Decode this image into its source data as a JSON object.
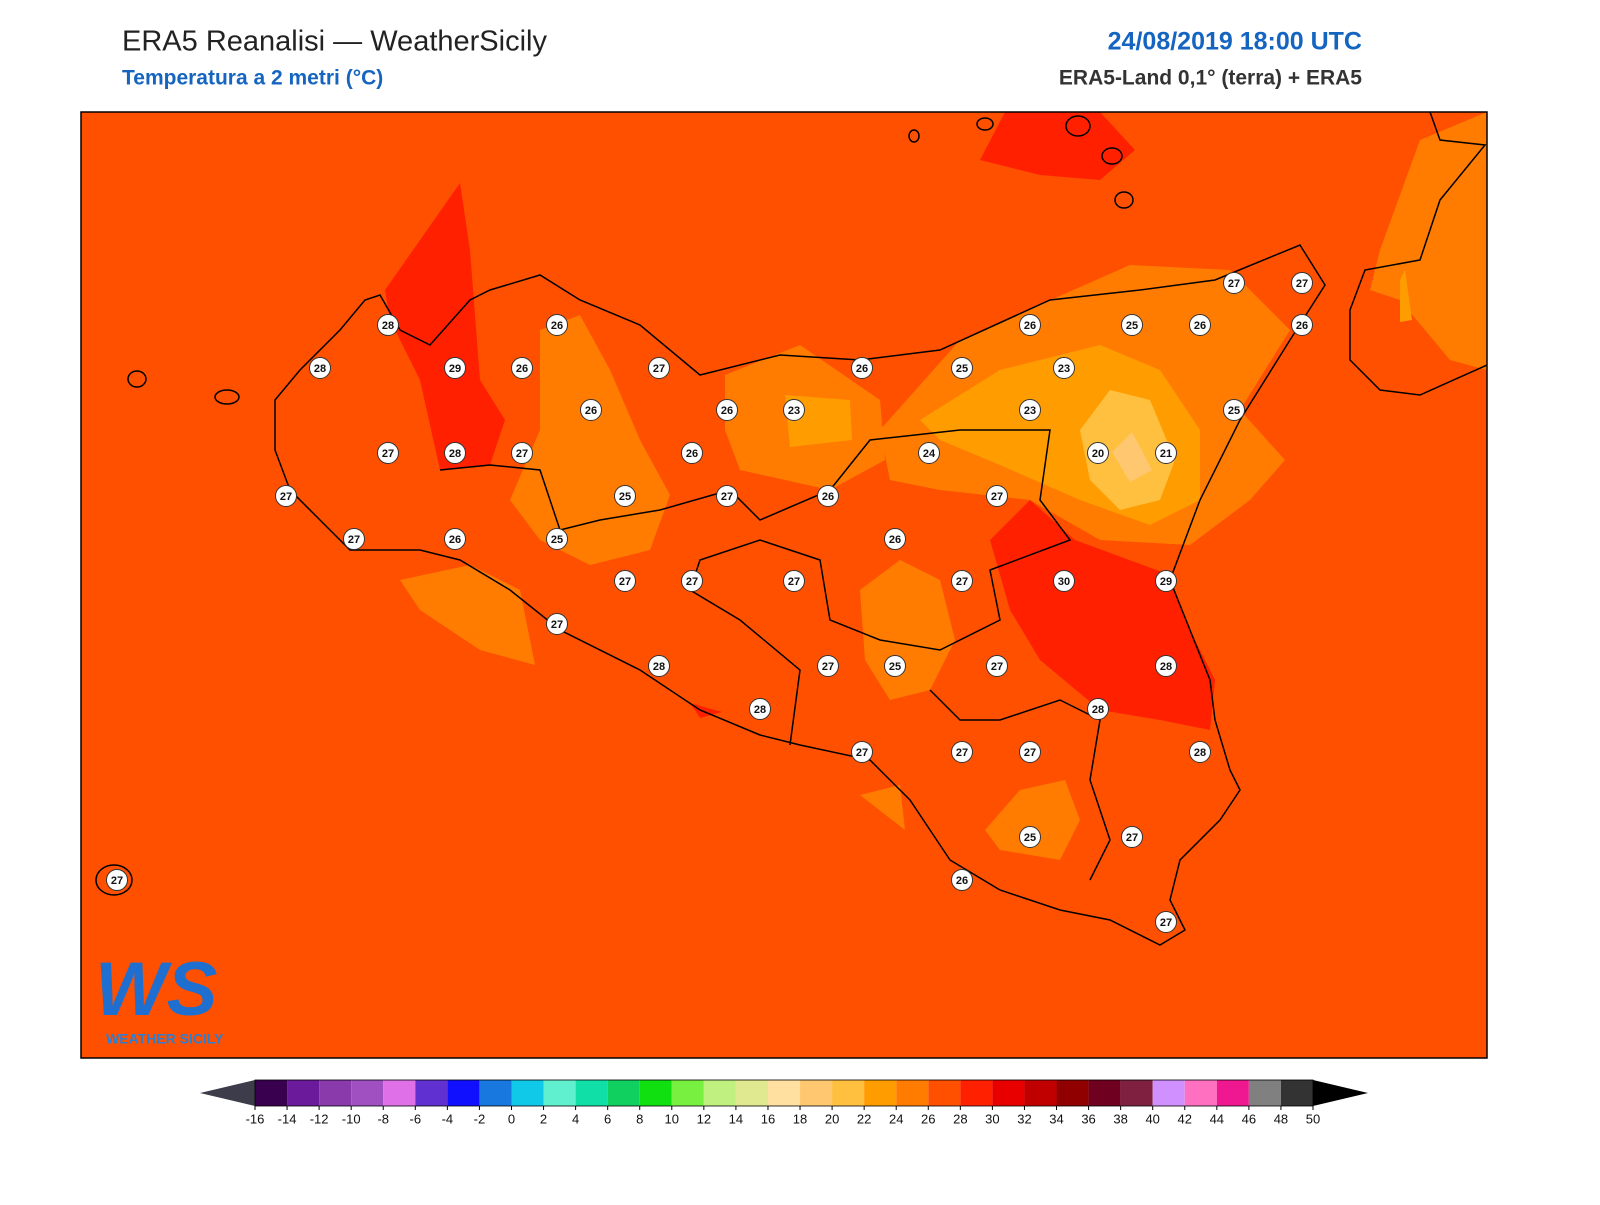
{
  "header": {
    "title": "ERA5 Reanalisi — WeatherSicily",
    "subtitle": "Temperatura a 2 metri (°C)",
    "datetime": "24/08/2019 18:00 UTC",
    "source": "ERA5-Land 0,1° (terra) + ERA5"
  },
  "logo": {
    "mark": "WS",
    "name": "WEATHER SICILY"
  },
  "stations": [
    27,
    27,
    28,
    26,
    26,
    25,
    26,
    26,
    28,
    29,
    26,
    27,
    26,
    25,
    23,
    26,
    26,
    23,
    23,
    25,
    27,
    28,
    27,
    26,
    24,
    20,
    21,
    27,
    25,
    27,
    26,
    27,
    27,
    26,
    25,
    26,
    27,
    27,
    27,
    27,
    30,
    29,
    27,
    28,
    27,
    25,
    27,
    28,
    28,
    28,
    27,
    27,
    27,
    28,
    25,
    27,
    27,
    26,
    27
  ],
  "colorbar": {
    "ticks": [
      -16,
      -14,
      -12,
      -10,
      -8,
      -6,
      -4,
      -2,
      0,
      2,
      4,
      6,
      8,
      10,
      12,
      14,
      16,
      18,
      20,
      22,
      24,
      26,
      28,
      30,
      32,
      34,
      36,
      38,
      40,
      42,
      44,
      46,
      48,
      50
    ],
    "colors": [
      "#3a0050",
      "#6a1a9a",
      "#8a3aaa",
      "#a050c0",
      "#e070e8",
      "#6030d0",
      "#1010ff",
      "#1878e0",
      "#10c8e8",
      "#60f0d0",
      "#10e0a8",
      "#10d060",
      "#10e010",
      "#78f040",
      "#c0f080",
      "#e0e890",
      "#ffe0a0",
      "#ffc870",
      "#ffc040",
      "#ff9c00",
      "#ff7c00",
      "#ff5000",
      "#ff2000",
      "#e80000",
      "#c00000",
      "#900000",
      "#700020",
      "#802040",
      "#d090ff",
      "#ff70c0",
      "#f01890",
      "#808080",
      "#333333"
    ],
    "under": "#3c3c4a",
    "over": "#000000"
  }
}
